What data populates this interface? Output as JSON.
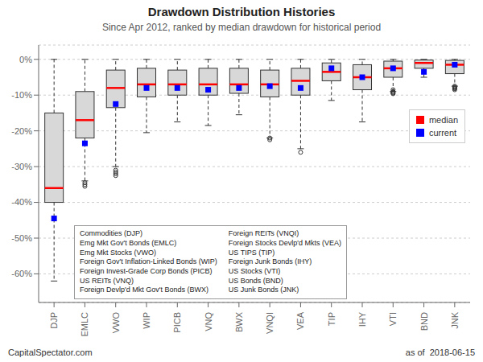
{
  "chart_data": {
    "type": "box",
    "title": "Drawdown Distribution Histories",
    "subtitle": "Since Apr 2012, ranked by median drawdown for historical period",
    "categories": [
      "DJP",
      "EMLC",
      "VWO",
      "WIP",
      "PICB",
      "VNQ",
      "BWX",
      "VNQI",
      "VEA",
      "TIP",
      "IHY",
      "VTI",
      "BND",
      "JNK"
    ],
    "boxes": [
      {
        "q1": -40.0,
        "q3": -15.0,
        "whislo": -62.0,
        "whishi": 0.0,
        "fliers": []
      },
      {
        "q1": -22.0,
        "q3": -9.0,
        "whislo": -34.0,
        "whishi": 0.0,
        "fliers": [
          -34.5,
          -35.0,
          -35.5
        ]
      },
      {
        "q1": -13.5,
        "q3": -3.0,
        "whislo": -30.0,
        "whishi": 0.0,
        "fliers": [
          -31.0,
          -31.5,
          -32.0,
          -32.5
        ]
      },
      {
        "q1": -10.5,
        "q3": -2.5,
        "whislo": -20.5,
        "whishi": 0.0,
        "fliers": []
      },
      {
        "q1": -10.0,
        "q3": -3.0,
        "whislo": -17.5,
        "whishi": 0.0,
        "fliers": []
      },
      {
        "q1": -10.0,
        "q3": -2.5,
        "whislo": -18.5,
        "whishi": 0.0,
        "fliers": []
      },
      {
        "q1": -9.5,
        "q3": -2.5,
        "whislo": -15.5,
        "whishi": 0.0,
        "fliers": []
      },
      {
        "q1": -10.5,
        "q3": -3.0,
        "whislo": -22.0,
        "whishi": 0.0,
        "fliers": [
          -22.0,
          -22.5
        ]
      },
      {
        "q1": -10.0,
        "q3": -2.5,
        "whislo": -25.0,
        "whishi": 0.0,
        "fliers": [
          -26.0
        ]
      },
      {
        "q1": -6.0,
        "q3": -1.0,
        "whislo": -11.5,
        "whishi": 0.0,
        "fliers": []
      },
      {
        "q1": -8.5,
        "q3": -1.5,
        "whislo": -17.5,
        "whishi": 0.0,
        "fliers": []
      },
      {
        "q1": -5.0,
        "q3": -0.5,
        "whislo": -9.0,
        "whishi": 0.0,
        "fliers": [
          -8.5,
          -9.0,
          -9.2,
          -9.4,
          -9.6
        ]
      },
      {
        "q1": -2.5,
        "q3": -0.2,
        "whislo": -5.0,
        "whishi": 0.0,
        "fliers": []
      },
      {
        "q1": -4.0,
        "q3": -0.3,
        "whislo": -7.5,
        "whishi": 0.0,
        "fliers": [
          -7.5,
          -7.8,
          -8.0,
          -8.2,
          -8.5
        ]
      }
    ],
    "series": [
      {
        "name": "median",
        "color": "red",
        "values": [
          -36.0,
          -17.0,
          -8.0,
          -7.0,
          -7.0,
          -7.0,
          -7.0,
          -7.0,
          -6.0,
          -3.5,
          -5.0,
          -2.5,
          -1.0,
          -1.5
        ]
      },
      {
        "name": "current",
        "color": "blue",
        "marker": "square",
        "values": [
          -44.5,
          -23.5,
          -12.5,
          -8.0,
          -8.0,
          -8.5,
          -8.0,
          -7.5,
          -8.0,
          -2.5,
          -5.0,
          -2.5,
          -3.5,
          -1.5
        ]
      }
    ],
    "ylim": [
      -68,
      4
    ],
    "yticks": [
      {
        "value": 0,
        "label": "0%"
      },
      {
        "value": -10,
        "label": "-10%"
      },
      {
        "value": -20,
        "label": "-20%"
      },
      {
        "value": -30,
        "label": "-30%"
      },
      {
        "value": -40,
        "label": "-40%"
      },
      {
        "value": -50,
        "label": "-50%"
      },
      {
        "value": -60,
        "label": "-60%"
      }
    ],
    "grid": true,
    "legend": "upper right",
    "annotations": [
      [
        "Commodities (DJP)",
        "Emg Mkt Gov't Bonds (EMLC)",
        "Emg Mkt Stocks (VWO)",
        "Foreign Gov't Inflation-Linked Bonds (WIP)",
        "Foreign Invest-Grade Corp Bonds (PICB)",
        "US REITs (VNQ)",
        "Foreign Devlp'd Mkt Gov't Bonds (BWX)"
      ],
      [
        "Foreign REITs (VNQI)",
        "Foreign Stocks Devlp'd Mkts (VEA)",
        "US TIPS (TIP)",
        "Foreign Junk Bonds (IHY)",
        "US Stocks (VTI)",
        "US Bonds (BND)",
        "US Junk Bonds (JNK)"
      ],
      "CapitalSpectator.com",
      "as of  2018-06-15"
    ]
  }
}
